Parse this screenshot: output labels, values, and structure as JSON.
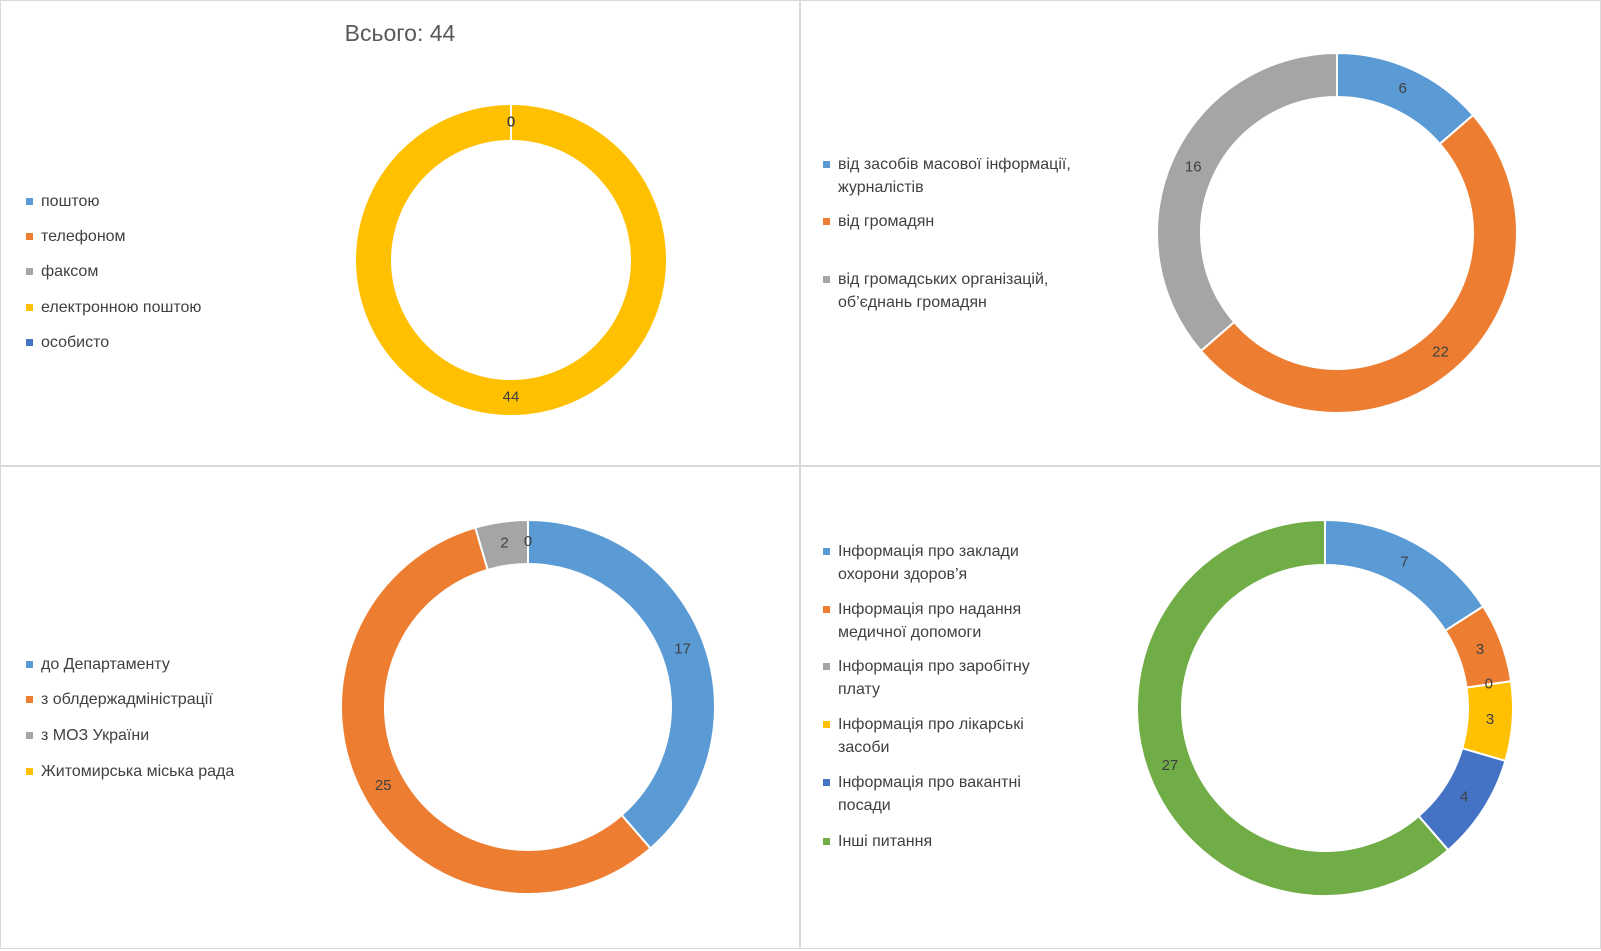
{
  "chart_data": [
    {
      "type": "donut",
      "title": "Всього: 44",
      "categories": [
        "поштою",
        "телефоном",
        "факсом",
        "електронною поштою",
        "особисто"
      ],
      "values": [
        0,
        0,
        0,
        44,
        0
      ],
      "colors": [
        "#5b9bd5",
        "#ed7d31",
        "#a5a5a5",
        "#ffc000",
        "#4472c4"
      ]
    },
    {
      "type": "donut",
      "categories": [
        "від засобів масової інформації, журналістів",
        "від громадян",
        "від громадських організацій, об’єднань громадян"
      ],
      "values": [
        6,
        22,
        16
      ],
      "colors": [
        "#5b9bd5",
        "#ed7d31",
        "#a5a5a5"
      ]
    },
    {
      "type": "donut",
      "categories": [
        "до Департаменту",
        "з облдержадміністрації",
        "з МОЗ України",
        "Житомирська міська рада"
      ],
      "values": [
        17,
        25,
        2,
        0
      ],
      "colors": [
        "#5b9bd5",
        "#ed7d31",
        "#a5a5a5",
        "#ffc000"
      ]
    },
    {
      "type": "donut",
      "categories": [
        "Інформація про заклади охорони здоров’я",
        "Інформація про надання медичної допомоги",
        "Інформація про заробітну плату",
        "Інформація про лікарські засоби",
        "Інформація про вакантні посади",
        "Інші питання"
      ],
      "values": [
        7,
        3,
        0,
        3,
        4,
        27
      ],
      "colors": [
        "#5b9bd5",
        "#ed7d31",
        "#a5a5a5",
        "#ffc000",
        "#4472c4",
        "#70ad47"
      ]
    }
  ]
}
